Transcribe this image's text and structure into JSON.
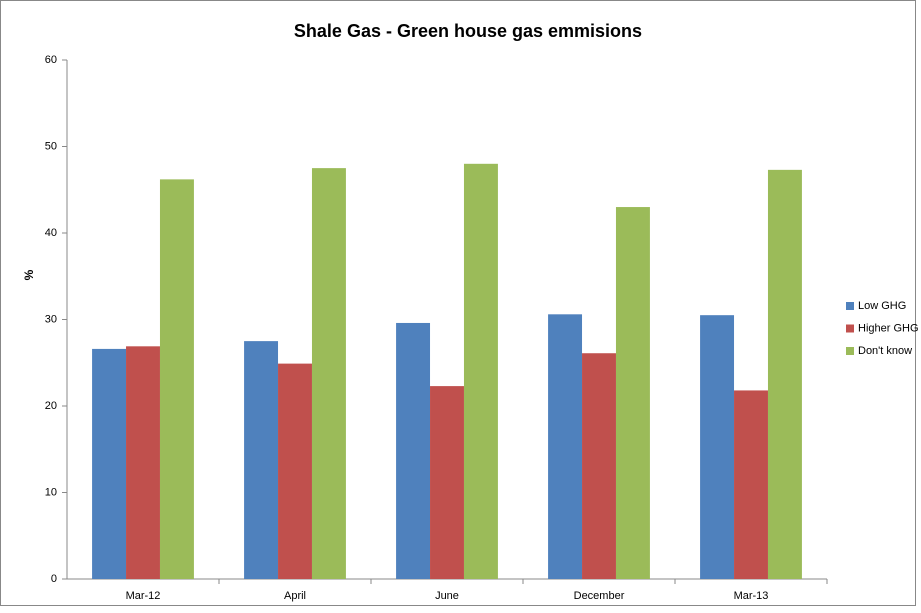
{
  "chart_data": {
    "type": "bar",
    "title": "Shale Gas - Green house gas  emmisions",
    "y_label": "%",
    "categories": [
      "Mar-12",
      "April",
      "June",
      "December",
      "Mar-13"
    ],
    "series": [
      {
        "name": "Low GHG",
        "color": "#4f81bd",
        "values": [
          26.6,
          27.5,
          29.6,
          30.6,
          30.5
        ]
      },
      {
        "name": "Higher GHG",
        "color": "#c0504d",
        "values": [
          26.9,
          24.9,
          22.3,
          26.1,
          21.8
        ]
      },
      {
        "name": "Don't know",
        "color": "#9bbb59",
        "values": [
          46.2,
          47.5,
          48.0,
          43.0,
          47.3
        ]
      }
    ],
    "ylim": [
      0,
      60
    ],
    "yticks": [
      0,
      10,
      20,
      30,
      40,
      50,
      60
    ],
    "grid": false,
    "legend": "right"
  }
}
